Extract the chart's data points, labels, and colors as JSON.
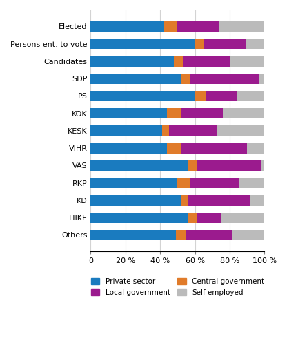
{
  "categories": [
    "Others",
    "LIIKE",
    "KD",
    "RKP",
    "VAS",
    "VIHR",
    "KESK",
    "KOK",
    "PS",
    "SDP",
    "Candidates",
    "Persons ent. to vote",
    "Elected"
  ],
  "private_sector": [
    49,
    56,
    52,
    50,
    56,
    44,
    41,
    44,
    60,
    52,
    48,
    60,
    42
  ],
  "central_govt": [
    6,
    5,
    4,
    7,
    5,
    8,
    4,
    8,
    6,
    5,
    5,
    5,
    8
  ],
  "local_govt": [
    26,
    14,
    36,
    28,
    37,
    38,
    28,
    24,
    18,
    40,
    27,
    24,
    24
  ],
  "self_employed": [
    19,
    25,
    8,
    15,
    2,
    10,
    27,
    24,
    16,
    3,
    20,
    11,
    26
  ],
  "colors": {
    "private_sector": "#1A7BBF",
    "central_govt": "#E07B2A",
    "local_govt": "#9B1B8E",
    "self_employed": "#BBBBBB"
  },
  "xlim": [
    0,
    100
  ],
  "xticks": [
    0,
    20,
    40,
    60,
    80,
    100
  ],
  "xtick_labels": [
    "0",
    "20 %",
    "40 %",
    "60 %",
    "80 %",
    "100 %"
  ],
  "bar_height": 0.6,
  "fig_width": 4.16,
  "fig_height": 4.91,
  "dpi": 100
}
